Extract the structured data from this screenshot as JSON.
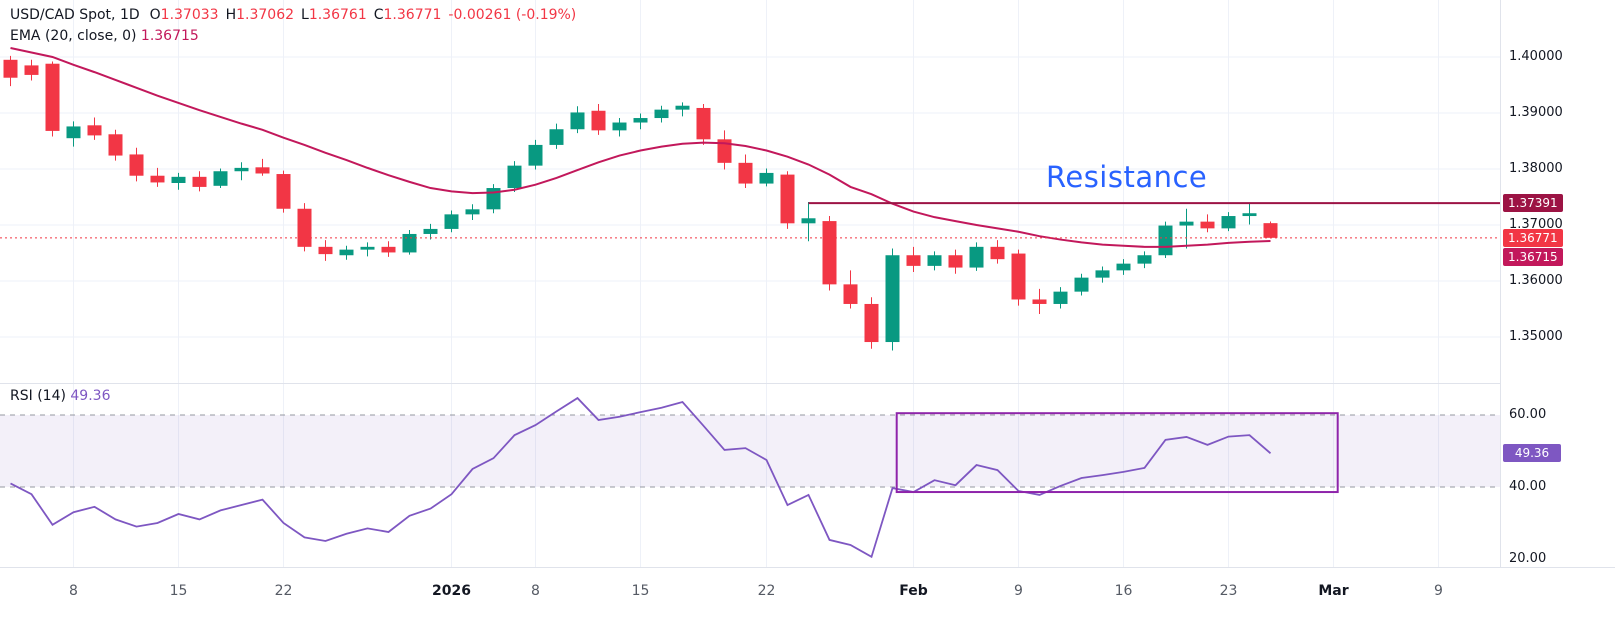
{
  "legend": {
    "symbol": "USD/CAD Spot, 1D",
    "ohlc": [
      {
        "label": "O",
        "value": "1.37033"
      },
      {
        "label": "H",
        "value": "1.37062"
      },
      {
        "label": "L",
        "value": "1.36761"
      },
      {
        "label": "C",
        "value": "1.36771"
      }
    ],
    "change": "-0.00261 (-0.19%)",
    "ema_name": "EMA (20, close, 0)",
    "ema_value": "1.36715",
    "rsi_name": "RSI (14)",
    "rsi_value": "49.36"
  },
  "badges": {
    "resistance": {
      "label": "1.37391",
      "bg": "#9c1344"
    },
    "last_price": {
      "label": "1.36771",
      "bg": "#f23645"
    },
    "ema": {
      "label": "1.36715",
      "bg": "#c2185b"
    },
    "rsi": {
      "label": "49.36",
      "bg": "#7e57c2"
    }
  },
  "chart_data": [
    {
      "type": "candlestick",
      "title": "USD/CAD Spot, 1D",
      "ylim": [
        1.345,
        1.405
      ],
      "y_ticks": [
        {
          "label": "1.40000",
          "value": 1.4
        },
        {
          "label": "1.39000",
          "value": 1.39
        },
        {
          "label": "1.38000",
          "value": 1.38
        },
        {
          "label": "1.37000",
          "value": 1.37
        },
        {
          "label": "1.36000",
          "value": 1.36
        },
        {
          "label": "1.35000",
          "value": 1.35
        }
      ],
      "x_ticks": [
        {
          "label": "8",
          "index": 3,
          "major": false
        },
        {
          "label": "15",
          "index": 8,
          "major": false
        },
        {
          "label": "22",
          "index": 13,
          "major": false
        },
        {
          "label": "2026",
          "index": 21,
          "major": true
        },
        {
          "label": "8",
          "index": 25,
          "major": false
        },
        {
          "label": "15",
          "index": 30,
          "major": false
        },
        {
          "label": "22",
          "index": 36,
          "major": false
        },
        {
          "label": "Feb",
          "index": 43,
          "major": true
        },
        {
          "label": "9",
          "index": 48,
          "major": false
        },
        {
          "label": "16",
          "index": 53,
          "major": false
        },
        {
          "label": "23",
          "index": 58,
          "major": false
        },
        {
          "label": "Mar",
          "index": 63,
          "major": true
        },
        {
          "label": "9",
          "index": 68,
          "major": false
        }
      ],
      "candles_ohlc": [
        [
          1.3995,
          1.4002,
          1.3948,
          1.3963
        ],
        [
          1.3985,
          1.3995,
          1.3958,
          1.3968
        ],
        [
          1.3988,
          1.3992,
          1.3858,
          1.3868
        ],
        [
          1.3855,
          1.3885,
          1.384,
          1.3876
        ],
        [
          1.3878,
          1.3892,
          1.3852,
          1.386
        ],
        [
          1.3862,
          1.387,
          1.3815,
          1.3824
        ],
        [
          1.3826,
          1.3838,
          1.3778,
          1.3788
        ],
        [
          1.3788,
          1.3802,
          1.3768,
          1.3776
        ],
        [
          1.3775,
          1.3793,
          1.3763,
          1.3786
        ],
        [
          1.3786,
          1.3796,
          1.376,
          1.3768
        ],
        [
          1.377,
          1.3801,
          1.3766,
          1.3796
        ],
        [
          1.3796,
          1.3812,
          1.378,
          1.3802
        ],
        [
          1.3803,
          1.3818,
          1.3788,
          1.3792
        ],
        [
          1.3791,
          1.3797,
          1.3722,
          1.3729
        ],
        [
          1.3729,
          1.3739,
          1.3653,
          1.3661
        ],
        [
          1.3661,
          1.3673,
          1.3636,
          1.3648
        ],
        [
          1.3646,
          1.3663,
          1.3638,
          1.3656
        ],
        [
          1.3656,
          1.3669,
          1.3644,
          1.3661
        ],
        [
          1.3661,
          1.3671,
          1.3643,
          1.3651
        ],
        [
          1.3651,
          1.3691,
          1.3647,
          1.3684
        ],
        [
          1.3684,
          1.3702,
          1.3674,
          1.3693
        ],
        [
          1.3693,
          1.3726,
          1.3687,
          1.3719
        ],
        [
          1.3719,
          1.3737,
          1.3709,
          1.3728
        ],
        [
          1.3728,
          1.3773,
          1.3721,
          1.3766
        ],
        [
          1.3766,
          1.3814,
          1.3759,
          1.3806
        ],
        [
          1.3806,
          1.3852,
          1.3799,
          1.3843
        ],
        [
          1.3843,
          1.3881,
          1.3836,
          1.3871
        ],
        [
          1.3871,
          1.3912,
          1.3864,
          1.3901
        ],
        [
          1.3904,
          1.3916,
          1.3861,
          1.3869
        ],
        [
          1.3869,
          1.3891,
          1.3858,
          1.3883
        ],
        [
          1.3883,
          1.3899,
          1.3871,
          1.3891
        ],
        [
          1.3891,
          1.3913,
          1.3883,
          1.3906
        ],
        [
          1.3906,
          1.3919,
          1.3894,
          1.3913
        ],
        [
          1.3909,
          1.3916,
          1.3843,
          1.3853
        ],
        [
          1.3853,
          1.3869,
          1.3799,
          1.3811
        ],
        [
          1.3811,
          1.3826,
          1.3766,
          1.3774
        ],
        [
          1.3774,
          1.3801,
          1.3769,
          1.3793
        ],
        [
          1.379,
          1.3796,
          1.3693,
          1.3703
        ],
        [
          1.3703,
          1.3741,
          1.3671,
          1.3712
        ],
        [
          1.3707,
          1.3716,
          1.3583,
          1.3594
        ],
        [
          1.3594,
          1.3619,
          1.3551,
          1.3559
        ],
        [
          1.3559,
          1.3571,
          1.3479,
          1.3491
        ],
        [
          1.3491,
          1.3658,
          1.3476,
          1.3646
        ],
        [
          1.3646,
          1.3661,
          1.3616,
          1.3627
        ],
        [
          1.3627,
          1.3653,
          1.3619,
          1.3646
        ],
        [
          1.3646,
          1.3656,
          1.3613,
          1.3624
        ],
        [
          1.3624,
          1.3669,
          1.3618,
          1.3661
        ],
        [
          1.3661,
          1.3673,
          1.3631,
          1.3639
        ],
        [
          1.3649,
          1.3656,
          1.3556,
          1.3567
        ],
        [
          1.3567,
          1.3586,
          1.3541,
          1.3559
        ],
        [
          1.3559,
          1.3589,
          1.3551,
          1.3581
        ],
        [
          1.3581,
          1.3613,
          1.3574,
          1.3606
        ],
        [
          1.3606,
          1.3626,
          1.3597,
          1.3619
        ],
        [
          1.3619,
          1.3639,
          1.3611,
          1.3631
        ],
        [
          1.3631,
          1.3653,
          1.3623,
          1.3646
        ],
        [
          1.3646,
          1.3706,
          1.3641,
          1.3699
        ],
        [
          1.3699,
          1.3729,
          1.3658,
          1.3706
        ],
        [
          1.3706,
          1.3719,
          1.3687,
          1.3694
        ],
        [
          1.3694,
          1.3723,
          1.3689,
          1.3716
        ],
        [
          1.3716,
          1.3739,
          1.3701,
          1.3721
        ],
        [
          1.37033,
          1.37062,
          1.36761,
          1.36771
        ]
      ],
      "ema20": [
        1.4016,
        1.4008,
        1.4,
        1.3986,
        1.3973,
        1.3959,
        1.3945,
        1.3931,
        1.3918,
        1.3905,
        1.3893,
        1.3881,
        1.387,
        1.3856,
        1.3843,
        1.3829,
        1.3816,
        1.3802,
        1.3789,
        1.3777,
        1.3766,
        1.376,
        1.3757,
        1.3758,
        1.3763,
        1.3772,
        1.3784,
        1.3798,
        1.3812,
        1.3824,
        1.3833,
        1.384,
        1.3845,
        1.3847,
        1.3846,
        1.3841,
        1.3833,
        1.3822,
        1.3808,
        1.379,
        1.3768,
        1.3755,
        1.3738,
        1.3724,
        1.3714,
        1.3707,
        1.37,
        1.3694,
        1.3688,
        1.368,
        1.3674,
        1.3669,
        1.3665,
        1.3663,
        1.3661,
        1.3661,
        1.3663,
        1.3665,
        1.3668,
        1.367,
        1.36715
      ],
      "ema_last": 1.36715,
      "last_price": 1.36771,
      "resistance": {
        "text": "Resistance",
        "price": 1.37391,
        "label": "1.37391",
        "start_index": 38
      },
      "colors": {
        "up": "#089981",
        "down": "#f23645",
        "ema": "#c2185b",
        "resistance": "#9c1344",
        "last_price_line": "#f23645",
        "resistance_text": "#2962ff",
        "grid": "#eef1f8"
      }
    },
    {
      "type": "line",
      "title": "RSI (14)",
      "ylim": [
        14,
        70
      ],
      "y_ticks": [
        {
          "label": "60.00",
          "value": 60
        },
        {
          "label": "40.00",
          "value": 40
        },
        {
          "label": "20.00",
          "value": 20
        }
      ],
      "values": [
        41,
        38,
        29.5,
        33,
        34.5,
        31,
        29,
        30,
        32.5,
        31,
        33.5,
        35,
        36.5,
        30,
        26,
        25,
        27,
        28.5,
        27.5,
        32,
        34,
        38,
        45,
        48,
        54.4,
        57.2,
        61,
        64.7,
        58.6,
        59.5,
        60.8,
        62,
        63.6,
        57,
        50.3,
        50.8,
        47.5,
        35,
        37.8,
        25.3,
        23.9,
        20.6,
        39.7,
        38.6,
        41.9,
        40.5,
        46.1,
        44.7,
        38.9,
        37.8,
        40.3,
        42.5,
        43.3,
        44.2,
        45.3,
        53.1,
        53.9,
        51.7,
        54,
        54.4,
        49.36
      ],
      "last_value": 49.36,
      "bands": {
        "upper": 60,
        "lower": 40
      },
      "box": {
        "start_index": 42.2,
        "end_index": 63.2,
        "top": 60.5,
        "bottom": 38.6,
        "color": "#8e24aa"
      },
      "colors": {
        "line": "#7e57c2",
        "band_fill": "rgba(126,87,194,0.09)",
        "band_line": "#9598a1"
      }
    }
  ]
}
